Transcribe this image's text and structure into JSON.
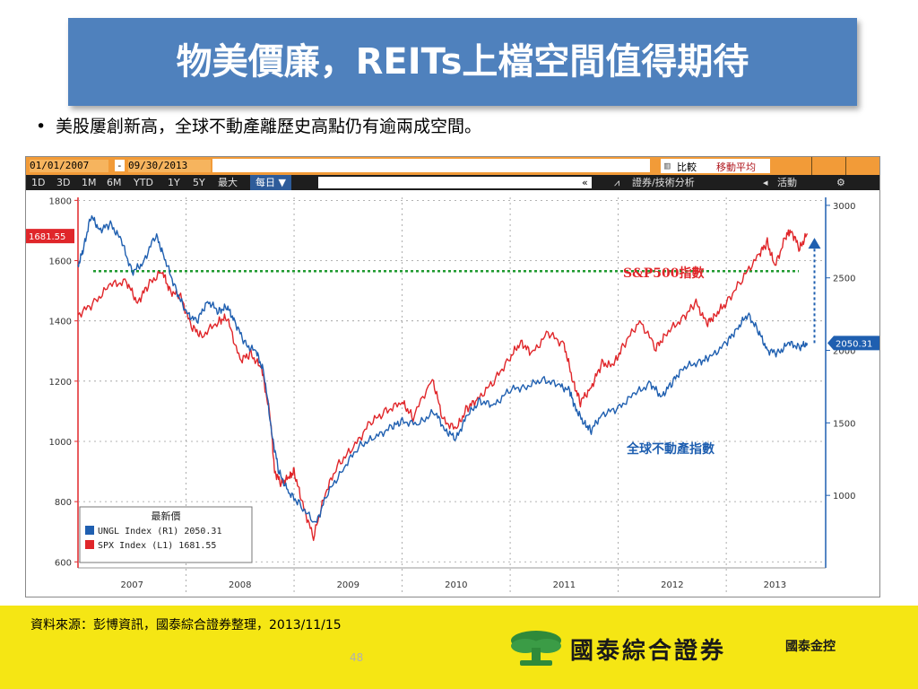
{
  "slide": {
    "title": "物美價廉，REITs上檔空間值得期待",
    "bullet": "美股屢創新高，全球不動產離歷史高點仍有逾兩成空間。",
    "source": "資料來源：彭博資訊，國泰綜合證券整理，2013/11/15",
    "page_number": "48",
    "brand_name": "國泰綜合證券",
    "brand_parent": "國泰金控"
  },
  "toolbar": {
    "date_from": "01/01/2007",
    "date_sep": "-",
    "date_to": "09/30/2013",
    "compare": "比較",
    "moving_avg": "移動平均",
    "periods": [
      "1D",
      "3D",
      "1M",
      "6M",
      "YTD",
      "1Y",
      "5Y",
      "最大"
    ],
    "frequency": "每日 ▼",
    "scroll_arrow": "«",
    "analysis": "證券/技術分析",
    "activity": "活動",
    "settings_icon": "⚙"
  },
  "chart_data": {
    "type": "line",
    "x_start": "2007-01",
    "x_end": "2013-09",
    "x_tick_labels": [
      "2007",
      "2008",
      "2009",
      "2010",
      "2011",
      "2012",
      "2013"
    ],
    "left_axis": {
      "ylim": [
        580,
        1810
      ],
      "ticks": [
        600,
        800,
        1000,
        1200,
        1400,
        1600,
        1800
      ],
      "current_label": "1681.55"
    },
    "right_axis": {
      "ylim": [
        500,
        3055
      ],
      "ticks": [
        1000,
        1500,
        2000,
        2500,
        3000
      ],
      "current_label": "2050.31"
    },
    "series": [
      {
        "name": "S&P500指數",
        "axis": "left",
        "color": "#e0262a",
        "points": [
          [
            2007.0,
            1420
          ],
          [
            2007.15,
            1460
          ],
          [
            2007.3,
            1520
          ],
          [
            2007.45,
            1530
          ],
          [
            2007.55,
            1460
          ],
          [
            2007.65,
            1520
          ],
          [
            2007.78,
            1565
          ],
          [
            2007.85,
            1500
          ],
          [
            2007.95,
            1480
          ],
          [
            2008.05,
            1380
          ],
          [
            2008.15,
            1350
          ],
          [
            2008.3,
            1400
          ],
          [
            2008.38,
            1410
          ],
          [
            2008.5,
            1270
          ],
          [
            2008.6,
            1290
          ],
          [
            2008.7,
            1240
          ],
          [
            2008.78,
            1080
          ],
          [
            2008.82,
            900
          ],
          [
            2008.88,
            860
          ],
          [
            2008.95,
            880
          ],
          [
            2009.0,
            900
          ],
          [
            2009.08,
            790
          ],
          [
            2009.18,
            680
          ],
          [
            2009.28,
            820
          ],
          [
            2009.4,
            920
          ],
          [
            2009.55,
            980
          ],
          [
            2009.7,
            1060
          ],
          [
            2009.85,
            1100
          ],
          [
            2010.0,
            1130
          ],
          [
            2010.1,
            1080
          ],
          [
            2010.28,
            1210
          ],
          [
            2010.38,
            1070
          ],
          [
            2010.5,
            1040
          ],
          [
            2010.6,
            1110
          ],
          [
            2010.7,
            1140
          ],
          [
            2010.85,
            1200
          ],
          [
            2011.0,
            1280
          ],
          [
            2011.1,
            1330
          ],
          [
            2011.2,
            1290
          ],
          [
            2011.35,
            1360
          ],
          [
            2011.5,
            1320
          ],
          [
            2011.58,
            1200
          ],
          [
            2011.65,
            1130
          ],
          [
            2011.75,
            1180
          ],
          [
            2011.85,
            1260
          ],
          [
            2011.95,
            1250
          ],
          [
            2012.05,
            1320
          ],
          [
            2012.2,
            1400
          ],
          [
            2012.35,
            1310
          ],
          [
            2012.45,
            1360
          ],
          [
            2012.6,
            1410
          ],
          [
            2012.72,
            1460
          ],
          [
            2012.82,
            1390
          ],
          [
            2012.9,
            1420
          ],
          [
            2013.0,
            1460
          ],
          [
            2013.15,
            1540
          ],
          [
            2013.3,
            1620
          ],
          [
            2013.38,
            1660
          ],
          [
            2013.45,
            1580
          ],
          [
            2013.55,
            1680
          ],
          [
            2013.6,
            1700
          ],
          [
            2013.68,
            1640
          ],
          [
            2013.75,
            1690
          ]
        ]
      },
      {
        "name": "全球不動產指數",
        "axis": "right",
        "color": "#1f5fb0",
        "points": [
          [
            2007.0,
            2580
          ],
          [
            2007.05,
            2700
          ],
          [
            2007.12,
            2930
          ],
          [
            2007.2,
            2830
          ],
          [
            2007.3,
            2870
          ],
          [
            2007.4,
            2760
          ],
          [
            2007.5,
            2540
          ],
          [
            2007.6,
            2600
          ],
          [
            2007.72,
            2800
          ],
          [
            2007.8,
            2640
          ],
          [
            2007.9,
            2430
          ],
          [
            2008.0,
            2260
          ],
          [
            2008.1,
            2200
          ],
          [
            2008.2,
            2340
          ],
          [
            2008.3,
            2270
          ],
          [
            2008.38,
            2300
          ],
          [
            2008.45,
            2200
          ],
          [
            2008.55,
            2040
          ],
          [
            2008.65,
            1990
          ],
          [
            2008.72,
            1850
          ],
          [
            2008.8,
            1400
          ],
          [
            2008.86,
            1160
          ],
          [
            2008.95,
            1020
          ],
          [
            2009.05,
            940
          ],
          [
            2009.2,
            800
          ],
          [
            2009.3,
            1000
          ],
          [
            2009.45,
            1180
          ],
          [
            2009.6,
            1340
          ],
          [
            2009.75,
            1400
          ],
          [
            2009.9,
            1470
          ],
          [
            2010.0,
            1510
          ],
          [
            2010.15,
            1490
          ],
          [
            2010.3,
            1580
          ],
          [
            2010.4,
            1450
          ],
          [
            2010.5,
            1390
          ],
          [
            2010.6,
            1550
          ],
          [
            2010.72,
            1650
          ],
          [
            2010.85,
            1620
          ],
          [
            2011.0,
            1730
          ],
          [
            2011.15,
            1750
          ],
          [
            2011.3,
            1800
          ],
          [
            2011.45,
            1760
          ],
          [
            2011.55,
            1720
          ],
          [
            2011.6,
            1610
          ],
          [
            2011.68,
            1500
          ],
          [
            2011.75,
            1450
          ],
          [
            2011.85,
            1560
          ],
          [
            2012.0,
            1600
          ],
          [
            2012.15,
            1700
          ],
          [
            2012.3,
            1770
          ],
          [
            2012.4,
            1680
          ],
          [
            2012.5,
            1780
          ],
          [
            2012.6,
            1880
          ],
          [
            2012.75,
            1920
          ],
          [
            2012.85,
            1950
          ],
          [
            2013.0,
            2050
          ],
          [
            2013.1,
            2150
          ],
          [
            2013.2,
            2250
          ],
          [
            2013.3,
            2130
          ],
          [
            2013.38,
            2000
          ],
          [
            2013.48,
            1980
          ],
          [
            2013.58,
            2050
          ],
          [
            2013.68,
            2020
          ],
          [
            2013.75,
            2050
          ]
        ]
      }
    ],
    "legend": {
      "title": "最新價",
      "placement": "bottom-left",
      "entries": [
        {
          "label": "UNGL Index  (R1) 2050.31",
          "color": "#1f5fb0"
        },
        {
          "label": "SPX Index  (L1)  1681.55",
          "color": "#e0262a"
        }
      ]
    },
    "annotations": [
      {
        "text": "S&P500指數",
        "color": "#e0262a"
      },
      {
        "text": "全球不動產指數",
        "color": "#1f5fb0"
      }
    ],
    "grid": true
  }
}
